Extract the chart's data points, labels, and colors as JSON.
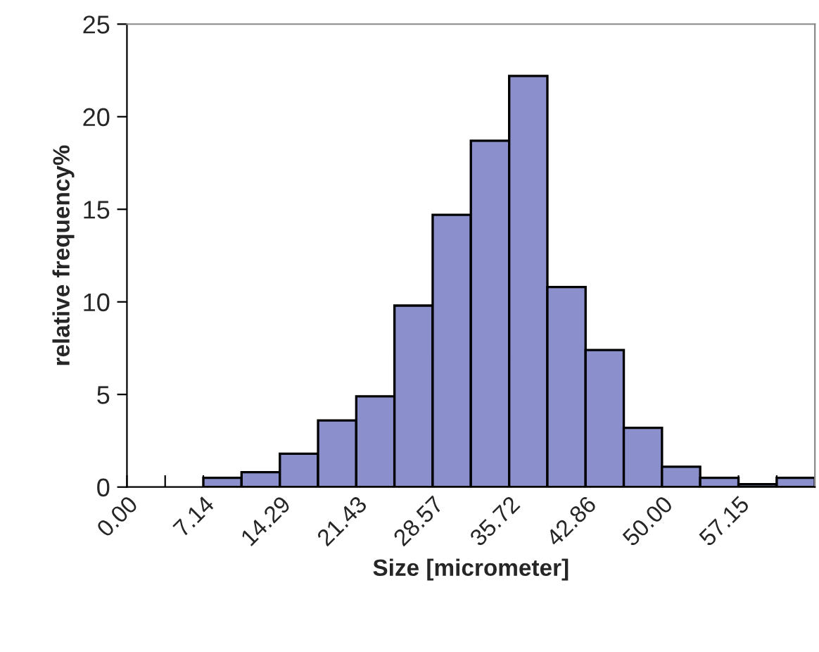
{
  "chart_data": {
    "type": "histogram",
    "xlabel": "Size [micrometer]",
    "ylabel": "relative frequency%",
    "bins": [
      7.14,
      10.71,
      14.29,
      17.86,
      21.43,
      25.0,
      28.57,
      32.14,
      35.72,
      39.29,
      42.86,
      46.43,
      50.0,
      53.57,
      57.15,
      60.72,
      64.29
    ],
    "values": [
      0.5,
      0.8,
      1.8,
      3.6,
      4.9,
      9.8,
      14.7,
      18.7,
      22.2,
      10.8,
      7.4,
      3.2,
      1.1,
      0.5,
      0.15,
      0.5
    ],
    "color": "#8b8fcc",
    "xlim": [
      0,
      64.29
    ],
    "xticks": [
      {
        "value": 0,
        "label": "0.00"
      },
      {
        "value": 3.57,
        "label": null
      },
      {
        "value": 7.14,
        "label": "7.14"
      },
      {
        "value": 10.71,
        "label": null
      },
      {
        "value": 14.29,
        "label": "14.29"
      },
      {
        "value": 17.86,
        "label": null
      },
      {
        "value": 21.43,
        "label": "21.43"
      },
      {
        "value": 25.0,
        "label": null
      },
      {
        "value": 28.57,
        "label": "28.57"
      },
      {
        "value": 32.14,
        "label": null
      },
      {
        "value": 35.72,
        "label": "35.72"
      },
      {
        "value": 39.29,
        "label": null
      },
      {
        "value": 42.86,
        "label": "42.86"
      },
      {
        "value": 46.43,
        "label": null
      },
      {
        "value": 50.0,
        "label": "50.00"
      },
      {
        "value": 53.57,
        "label": null
      },
      {
        "value": 57.15,
        "label": "57.15"
      },
      {
        "value": 60.72,
        "label": null
      }
    ],
    "ylim": [
      0,
      25
    ],
    "yticks": [
      0,
      5,
      10,
      15,
      20,
      25
    ],
    "grid": false
  }
}
